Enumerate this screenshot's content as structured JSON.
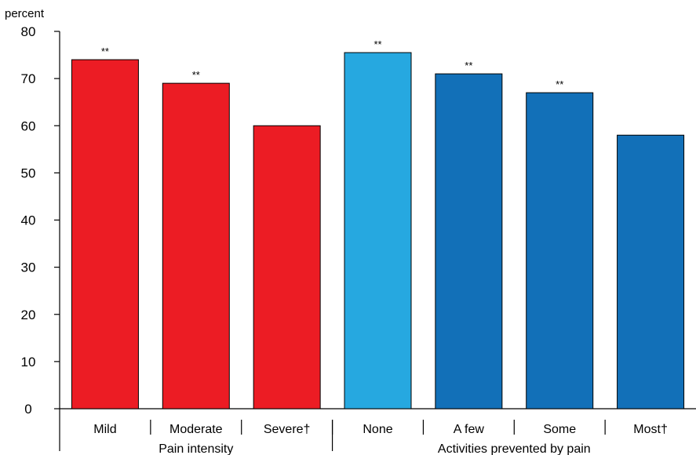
{
  "chart_data": {
    "type": "bar",
    "ylabel": "percent",
    "ylim": [
      0,
      80
    ],
    "yticks": [
      "0",
      "10",
      "20",
      "30",
      "40",
      "50",
      "60",
      "70",
      "80"
    ],
    "grid": false,
    "categories": [
      "Mild",
      "Moderate",
      "Severe†",
      "None",
      "A few",
      "Some",
      "Most†"
    ],
    "values": [
      74,
      69,
      60,
      75.5,
      71,
      67,
      58
    ],
    "significance": [
      "**",
      "**",
      "",
      "**",
      "**",
      "**",
      ""
    ],
    "bar_colors": [
      "#ec1c24",
      "#ec1c24",
      "#ec1c24",
      "#26a8e0",
      "#1270b8",
      "#1270b8",
      "#1270b8"
    ],
    "groups": [
      {
        "label": "Pain intensity",
        "categories": [
          "Mild",
          "Moderate",
          "Severe†"
        ]
      },
      {
        "label": "Activities prevented by pain",
        "categories": [
          "None",
          "A few",
          "Some",
          "Most†"
        ]
      }
    ]
  }
}
